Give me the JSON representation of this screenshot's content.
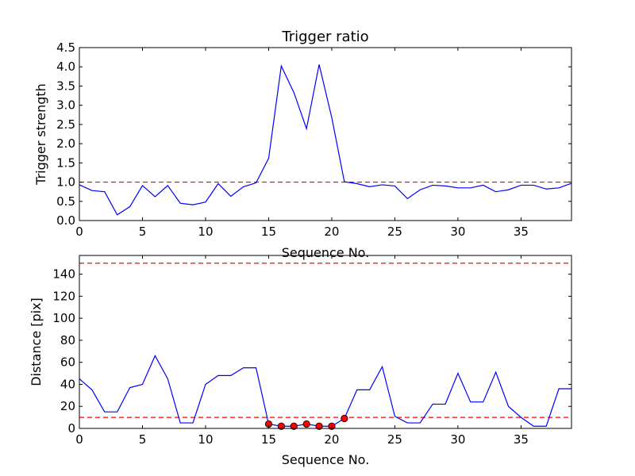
{
  "chart_data": [
    {
      "type": "line",
      "title": "Trigger ratio",
      "xlabel": "Sequence No.",
      "ylabel": "Trigger strength",
      "xlim": [
        0,
        39
      ],
      "ylim": [
        0,
        4.5
      ],
      "xticks": [
        "0",
        "5",
        "10",
        "15",
        "20",
        "25",
        "30",
        "35"
      ],
      "yticks": [
        "0.0",
        "0.5",
        "1.0",
        "1.5",
        "2.0",
        "2.5",
        "3.0",
        "3.5",
        "4.0",
        "4.5"
      ],
      "grid": false,
      "threshold": 1.0,
      "series": [
        {
          "color": "#0000ff",
          "x": [
            0,
            1,
            2,
            3,
            4,
            5,
            6,
            7,
            8,
            9,
            10,
            11,
            12,
            13,
            14,
            15,
            16,
            17,
            18,
            19,
            20,
            21,
            22,
            23,
            24,
            25,
            26,
            27,
            28,
            29,
            30,
            31,
            32,
            33,
            34,
            35,
            36,
            37,
            38,
            39
          ],
          "y": [
            0.93,
            0.78,
            0.75,
            0.15,
            0.36,
            0.91,
            0.62,
            0.91,
            0.45,
            0.41,
            0.48,
            0.96,
            0.63,
            0.88,
            0.98,
            1.62,
            4.02,
            3.33,
            2.39,
            4.06,
            2.68,
            1.01,
            0.96,
            0.88,
            0.93,
            0.9,
            0.57,
            0.8,
            0.92,
            0.9,
            0.85,
            0.85,
            0.92,
            0.75,
            0.8,
            0.92,
            0.92,
            0.82,
            0.85,
            0.97
          ]
        }
      ],
      "colors": {
        "line": "#0000ff",
        "threshold": "#ff0000"
      }
    },
    {
      "type": "line",
      "title": "",
      "xlabel": "Sequence No.",
      "ylabel": "Distance [pix]",
      "xlim": [
        0,
        39
      ],
      "ylim": [
        0,
        157
      ],
      "xticks": [
        "0",
        "5",
        "10",
        "15",
        "20",
        "25",
        "30",
        "35"
      ],
      "yticks": [
        "0",
        "20",
        "40",
        "60",
        "80",
        "100",
        "120",
        "140"
      ],
      "grid": false,
      "thresholds": [
        150,
        10
      ],
      "series": [
        {
          "color": "#0000ff",
          "x": [
            0,
            1,
            2,
            3,
            4,
            5,
            6,
            7,
            8,
            9,
            10,
            11,
            12,
            13,
            14,
            15,
            16,
            17,
            18,
            19,
            20,
            21,
            22,
            23,
            24,
            25,
            26,
            27,
            28,
            29,
            30,
            31,
            32,
            33,
            34,
            35,
            36,
            37,
            38,
            39
          ],
          "y": [
            45,
            35,
            15,
            15,
            37,
            40,
            66,
            45,
            5,
            5,
            40,
            48,
            48,
            55,
            55,
            4,
            2,
            2,
            4,
            2,
            2,
            9,
            35,
            35,
            56,
            11,
            5,
            5,
            22,
            22,
            50,
            24,
            24,
            51,
            20,
            10,
            2,
            2,
            36,
            36
          ]
        }
      ],
      "markers": {
        "color": "#ff0000",
        "x": [
          15,
          16,
          17,
          18,
          19,
          20,
          21
        ],
        "y": [
          4,
          2,
          2,
          4,
          2,
          2,
          9
        ]
      },
      "colors": {
        "line": "#0000ff",
        "threshold": "#ff0000",
        "marker": "#ff0000"
      }
    }
  ]
}
